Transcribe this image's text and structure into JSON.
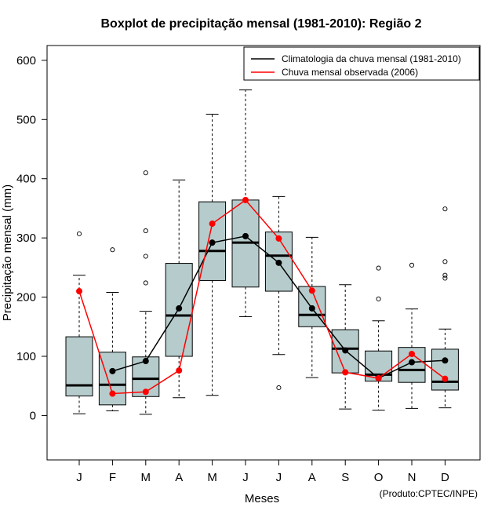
{
  "chart_data": {
    "type": "box",
    "title": "Boxplot de precipitação mensal (1981-2010): Região 2",
    "xlabel": "Meses",
    "ylabel": "Precipitação mensal (mm)",
    "ylim": [
      -75,
      625
    ],
    "yticks": [
      0,
      100,
      200,
      300,
      400,
      500,
      600
    ],
    "categories": [
      "J",
      "F",
      "M",
      "A",
      "M",
      "J",
      "J",
      "A",
      "S",
      "O",
      "N",
      "D"
    ],
    "boxes": [
      {
        "whisker_low": 3,
        "q1": 33,
        "median": 51,
        "q3": 133,
        "whisker_high": 237,
        "outliers": [
          307
        ]
      },
      {
        "whisker_low": 8,
        "q1": 18,
        "median": 52,
        "q3": 107,
        "whisker_high": 208,
        "outliers": [
          280
        ]
      },
      {
        "whisker_low": 2,
        "q1": 32,
        "median": 62,
        "q3": 99,
        "whisker_high": 176,
        "outliers": [
          410,
          312,
          269,
          224
        ]
      },
      {
        "whisker_low": 30,
        "q1": 100,
        "median": 169,
        "q3": 257,
        "whisker_high": 398,
        "outliers": []
      },
      {
        "whisker_low": 34,
        "q1": 228,
        "median": 278,
        "q3": 361,
        "whisker_high": 509,
        "outliers": []
      },
      {
        "whisker_low": 167,
        "q1": 217,
        "median": 292,
        "q3": 364,
        "whisker_high": 550,
        "outliers": []
      },
      {
        "whisker_low": 103,
        "q1": 210,
        "median": 270,
        "q3": 310,
        "whisker_high": 370,
        "outliers": [
          47
        ]
      },
      {
        "whisker_low": 64,
        "q1": 150,
        "median": 170,
        "q3": 218,
        "whisker_high": 301,
        "outliers": []
      },
      {
        "whisker_low": 11,
        "q1": 72,
        "median": 113,
        "q3": 145,
        "whisker_high": 221,
        "outliers": []
      },
      {
        "whisker_low": 9,
        "q1": 58,
        "median": 69,
        "q3": 109,
        "whisker_high": 160,
        "outliers": [
          249,
          197
        ]
      },
      {
        "whisker_low": 12,
        "q1": 56,
        "median": 77,
        "q3": 115,
        "whisker_high": 180,
        "outliers": [
          254
        ]
      },
      {
        "whisker_low": 13,
        "q1": 43,
        "median": 57,
        "q3": 112,
        "whisker_high": 146,
        "outliers": [
          349,
          260,
          237,
          232
        ]
      }
    ],
    "series": [
      {
        "name": "Climatologia da chuva mensal (1981-2010)",
        "color": "#000000",
        "start_index": 1,
        "values": [
          75,
          92,
          181,
          292,
          303,
          258,
          181,
          110,
          63,
          90,
          93
        ]
      },
      {
        "name": "Chuva mensal observada (2006)",
        "color": "#ff0000",
        "start_index": 0,
        "values": [
          210,
          37,
          40,
          76,
          324,
          364,
          299,
          211,
          73,
          63,
          104,
          62
        ]
      }
    ],
    "box_fill": "#b6cccc",
    "legend_position": "top-right"
  },
  "footer": "(Produto:CPTEC/INPE)"
}
